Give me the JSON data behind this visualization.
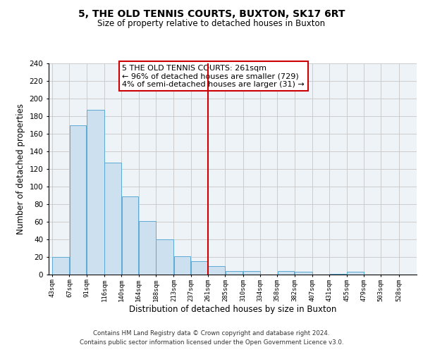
{
  "title": "5, THE OLD TENNIS COURTS, BUXTON, SK17 6RT",
  "subtitle": "Size of property relative to detached houses in Buxton",
  "xlabel": "Distribution of detached houses by size in Buxton",
  "ylabel": "Number of detached properties",
  "bar_left_edges": [
    43,
    67,
    91,
    116,
    140,
    164,
    188,
    213,
    237,
    261,
    285,
    310,
    334,
    358,
    382,
    407,
    431,
    455,
    479,
    503
  ],
  "bar_widths": [
    24,
    24,
    25,
    24,
    24,
    24,
    25,
    24,
    24,
    24,
    25,
    24,
    24,
    24,
    25,
    24,
    24,
    24,
    24,
    25
  ],
  "bar_heights": [
    20,
    170,
    187,
    127,
    89,
    61,
    40,
    21,
    15,
    10,
    4,
    4,
    0,
    4,
    3,
    0,
    1,
    3,
    0,
    0
  ],
  "bar_color": "#cce0f0",
  "bar_edgecolor": "#5baad4",
  "vline_x": 261,
  "vline_color": "#cc0000",
  "annotation_text": "5 THE OLD TENNIS COURTS: 261sqm\n← 96% of detached houses are smaller (729)\n4% of semi-detached houses are larger (31) →",
  "annotation_box_facecolor": "#ffffff",
  "annotation_box_edgecolor": "#cc0000",
  "xlim_left": 38,
  "xlim_right": 553,
  "ylim_top": 240,
  "ylim_bottom": 0,
  "yticks": [
    0,
    20,
    40,
    60,
    80,
    100,
    120,
    140,
    160,
    180,
    200,
    220,
    240
  ],
  "xtick_labels": [
    "43sqm",
    "67sqm",
    "91sqm",
    "116sqm",
    "140sqm",
    "164sqm",
    "188sqm",
    "213sqm",
    "237sqm",
    "261sqm",
    "285sqm",
    "310sqm",
    "334sqm",
    "358sqm",
    "382sqm",
    "407sqm",
    "431sqm",
    "455sqm",
    "479sqm",
    "503sqm",
    "528sqm"
  ],
  "xtick_positions": [
    43,
    67,
    91,
    116,
    140,
    164,
    188,
    213,
    237,
    261,
    285,
    310,
    334,
    358,
    382,
    407,
    431,
    455,
    479,
    503,
    528
  ],
  "footer_line1": "Contains HM Land Registry data © Crown copyright and database right 2024.",
  "footer_line2": "Contains public sector information licensed under the Open Government Licence v3.0.",
  "grid_color": "#cccccc",
  "background_color": "#ffffff",
  "ax_facecolor": "#eef3f8"
}
